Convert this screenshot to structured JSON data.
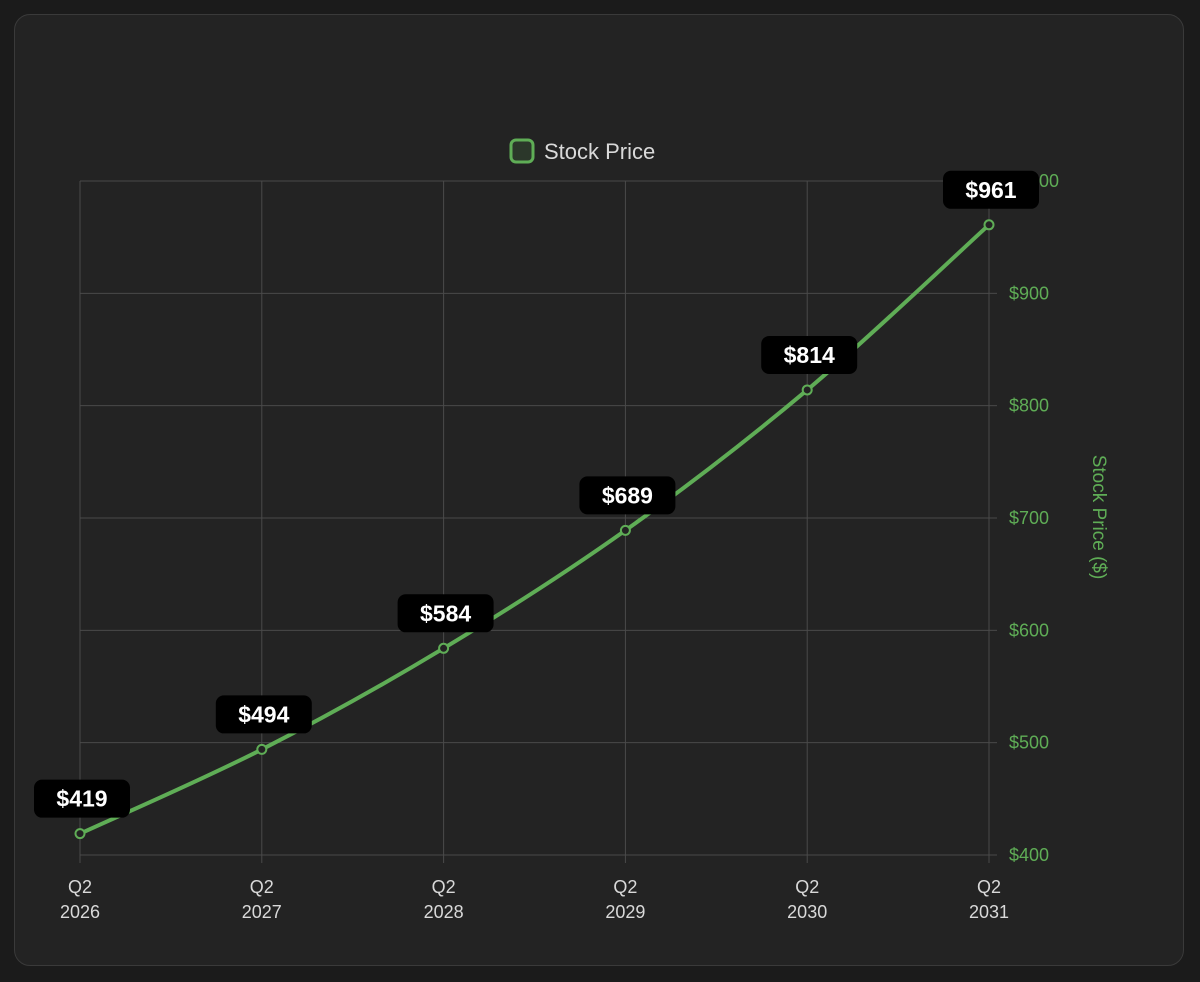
{
  "colors": {
    "background": "#1b1b1b",
    "card": "#232323",
    "grid": "#4a4a4a",
    "line": "#5fad56",
    "axis_text": "#5fad56",
    "tick_text": "#d9d9d9",
    "label_bg": "#000000",
    "label_text": "#ffffff",
    "legend_text": "#d9d9d9"
  },
  "chart_data": {
    "type": "line",
    "categories": [
      [
        "Q2",
        "2026"
      ],
      [
        "Q2",
        "2027"
      ],
      [
        "Q2",
        "2028"
      ],
      [
        "Q2",
        "2029"
      ],
      [
        "Q2",
        "2030"
      ],
      [
        "Q2",
        "2031"
      ]
    ],
    "series": [
      {
        "name": "Stock Price",
        "values": [
          419,
          494,
          584,
          689,
          814,
          961
        ],
        "data_labels": [
          "$419",
          "$494",
          "$584",
          "$689",
          "$814",
          "$961"
        ]
      }
    ],
    "title": "",
    "xlabel": "",
    "ylabel": "Stock Price ($)",
    "ylim": [
      400,
      1000
    ],
    "y_ticks": [
      400,
      500,
      600,
      700,
      800,
      900,
      1000
    ],
    "y_tick_labels": [
      "$400",
      "$500",
      "$600",
      "$700",
      "$800",
      "$900",
      "$1000"
    ],
    "y_axis_position": "right",
    "legend_position": "top-center",
    "grid": true,
    "smooth": true
  }
}
